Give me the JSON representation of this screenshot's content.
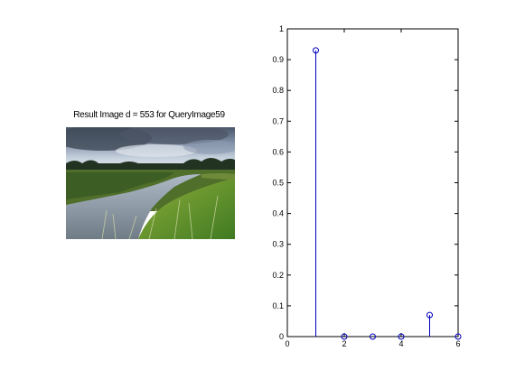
{
  "left_panel": {
    "title": "Result Image d = 553 for QueryImage59"
  },
  "colors": {
    "stem": "#0000c0",
    "axes": "#000000",
    "background": "#ffffff"
  },
  "chart_data": {
    "type": "stem",
    "title": "",
    "xlabel": "",
    "ylabel": "",
    "x": [
      1,
      2,
      3,
      4,
      5,
      6
    ],
    "values": [
      0.93,
      0.0,
      0.0,
      0.0,
      0.07,
      0.0
    ],
    "xlim": [
      0,
      6
    ],
    "ylim": [
      0,
      1
    ],
    "xticks": [
      "0",
      "2",
      "4",
      "6"
    ],
    "yticks": [
      "0",
      "0.1",
      "0.2",
      "0.3",
      "0.4",
      "0.5",
      "0.6",
      "0.7",
      "0.8",
      "0.9",
      "1"
    ],
    "grid": false,
    "marker": "open-circle"
  }
}
